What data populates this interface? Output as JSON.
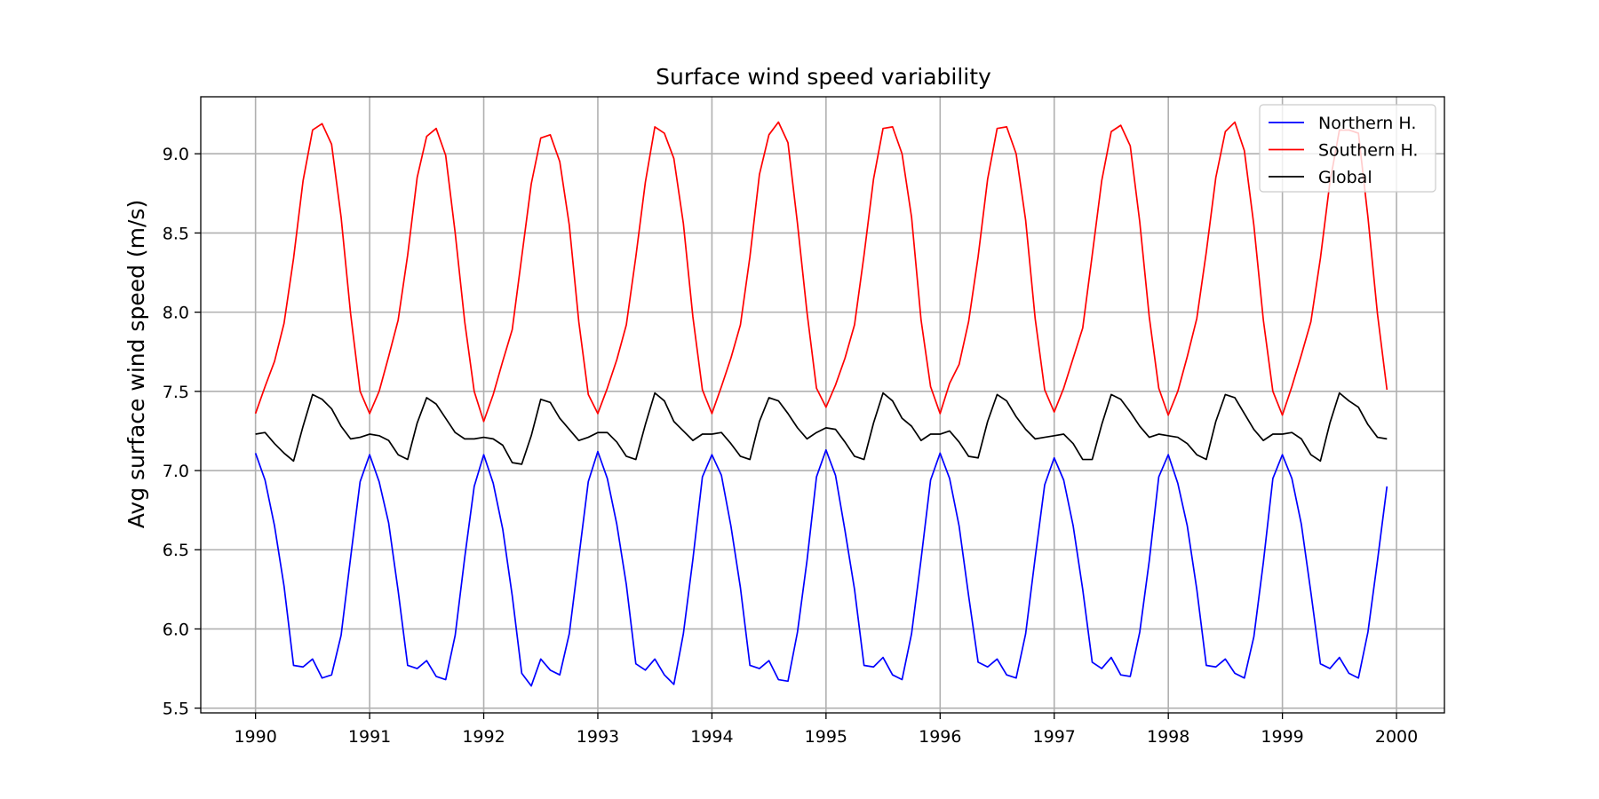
{
  "chart_data": {
    "type": "line",
    "title": "Surface wind speed variability",
    "xlabel": "",
    "ylabel": "Avg surface wind speed (m/s)",
    "xlim": [
      1989.52,
      2000.42
    ],
    "ylim": [
      5.47,
      9.36
    ],
    "xticks": [
      1990,
      1991,
      1992,
      1993,
      1994,
      1995,
      1996,
      1997,
      1998,
      1999,
      2000
    ],
    "xtick_labels": [
      "1990",
      "1991",
      "1992",
      "1993",
      "1994",
      "1995",
      "1996",
      "1997",
      "1998",
      "1999",
      "2000"
    ],
    "yticks": [
      5.5,
      6.0,
      6.5,
      7.0,
      7.5,
      8.0,
      8.5,
      9.0
    ],
    "ytick_labels": [
      "5.5",
      "6.0",
      "6.5",
      "7.0",
      "7.5",
      "8.0",
      "8.5",
      "9.0"
    ],
    "grid": true,
    "legend_position": "top-right",
    "x_start": 1990.0,
    "x_step": 0.08333,
    "series": [
      {
        "name": "Northern H.",
        "color": "#0000ff",
        "values": [
          7.11,
          6.94,
          6.65,
          6.27,
          5.77,
          5.76,
          5.81,
          5.69,
          5.71,
          5.96,
          6.45,
          6.93,
          7.1,
          6.93,
          6.67,
          6.24,
          5.77,
          5.75,
          5.8,
          5.7,
          5.68,
          5.96,
          6.45,
          6.9,
          7.1,
          6.92,
          6.63,
          6.21,
          5.72,
          5.64,
          5.81,
          5.74,
          5.71,
          5.97,
          6.45,
          6.93,
          7.12,
          6.95,
          6.66,
          6.28,
          5.78,
          5.74,
          5.81,
          5.71,
          5.65,
          5.97,
          6.44,
          6.96,
          7.1,
          6.97,
          6.65,
          6.26,
          5.77,
          5.75,
          5.8,
          5.68,
          5.67,
          5.98,
          6.43,
          6.96,
          7.13,
          6.97,
          6.62,
          6.25,
          5.77,
          5.76,
          5.82,
          5.71,
          5.68,
          5.97,
          6.44,
          6.94,
          7.11,
          6.95,
          6.65,
          6.21,
          5.79,
          5.76,
          5.81,
          5.71,
          5.69,
          5.97,
          6.45,
          6.91,
          7.08,
          6.94,
          6.65,
          6.25,
          5.79,
          5.75,
          5.82,
          5.71,
          5.7,
          5.98,
          6.43,
          6.96,
          7.1,
          6.92,
          6.65,
          6.25,
          5.77,
          5.76,
          5.81,
          5.72,
          5.69,
          5.95,
          6.42,
          6.95,
          7.1,
          6.95,
          6.66,
          6.23,
          5.78,
          5.75,
          5.82,
          5.72,
          5.69,
          5.98,
          6.43,
          6.9
        ]
      },
      {
        "name": "Southern H.",
        "color": "#ff0000",
        "values": [
          7.36,
          7.53,
          7.69,
          7.93,
          8.34,
          8.83,
          9.15,
          9.19,
          9.06,
          8.6,
          7.99,
          7.5,
          7.36,
          7.5,
          7.72,
          7.95,
          8.36,
          8.85,
          9.11,
          9.16,
          8.99,
          8.5,
          7.94,
          7.5,
          7.31,
          7.48,
          7.69,
          7.89,
          8.35,
          8.81,
          9.1,
          9.12,
          8.95,
          8.55,
          7.94,
          7.48,
          7.36,
          7.52,
          7.7,
          7.92,
          8.35,
          8.82,
          9.17,
          9.13,
          8.97,
          8.56,
          7.97,
          7.51,
          7.36,
          7.53,
          7.71,
          7.92,
          8.35,
          8.87,
          9.12,
          9.2,
          9.07,
          8.56,
          8.0,
          7.52,
          7.4,
          7.54,
          7.71,
          7.92,
          8.36,
          8.84,
          9.16,
          9.17,
          9.0,
          8.6,
          7.95,
          7.53,
          7.36,
          7.55,
          7.67,
          7.94,
          8.35,
          8.84,
          9.16,
          9.17,
          9.0,
          8.58,
          7.96,
          7.51,
          7.37,
          7.52,
          7.71,
          7.9,
          8.36,
          8.83,
          9.14,
          9.18,
          9.05,
          8.57,
          7.97,
          7.52,
          7.35,
          7.5,
          7.72,
          7.96,
          8.38,
          8.85,
          9.14,
          9.2,
          9.02,
          8.55,
          7.95,
          7.5,
          7.35,
          7.53,
          7.73,
          7.94,
          8.34,
          8.82,
          9.15,
          9.15,
          9.13,
          8.6,
          7.99,
          7.51
        ]
      },
      {
        "name": "Global",
        "color": "#000000",
        "values": [
          7.23,
          7.24,
          7.17,
          7.11,
          7.06,
          7.28,
          7.48,
          7.45,
          7.39,
          7.28,
          7.2,
          7.21,
          7.23,
          7.22,
          7.19,
          7.1,
          7.07,
          7.3,
          7.46,
          7.42,
          7.33,
          7.24,
          7.2,
          7.2,
          7.21,
          7.2,
          7.16,
          7.05,
          7.04,
          7.22,
          7.45,
          7.43,
          7.33,
          7.26,
          7.19,
          7.21,
          7.24,
          7.24,
          7.18,
          7.09,
          7.07,
          7.29,
          7.49,
          7.44,
          7.31,
          7.25,
          7.19,
          7.23,
          7.23,
          7.24,
          7.17,
          7.09,
          7.07,
          7.31,
          7.46,
          7.44,
          7.36,
          7.27,
          7.2,
          7.24,
          7.27,
          7.26,
          7.18,
          7.09,
          7.07,
          7.3,
          7.49,
          7.44,
          7.33,
          7.28,
          7.19,
          7.23,
          7.23,
          7.25,
          7.18,
          7.09,
          7.08,
          7.31,
          7.48,
          7.44,
          7.34,
          7.26,
          7.2,
          7.21,
          7.22,
          7.23,
          7.17,
          7.07,
          7.07,
          7.29,
          7.48,
          7.45,
          7.37,
          7.28,
          7.21,
          7.23,
          7.22,
          7.21,
          7.17,
          7.1,
          7.07,
          7.31,
          7.48,
          7.46,
          7.36,
          7.26,
          7.19,
          7.23,
          7.23,
          7.24,
          7.2,
          7.1,
          7.06,
          7.3,
          7.49,
          7.44,
          7.4,
          7.29,
          7.21,
          7.2
        ]
      }
    ]
  }
}
